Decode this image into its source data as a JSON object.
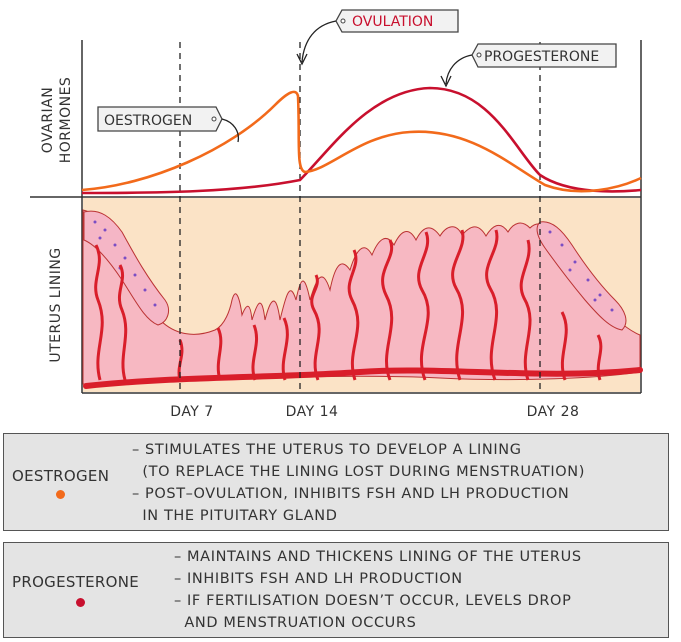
{
  "axes": {
    "ovarian_hormones": [
      "OVARIAN",
      "HORMONES"
    ],
    "uterus_lining": "UTERUS LINING"
  },
  "tags": {
    "ovulation": "OVULATION",
    "progesterone": "PROGESTERONE",
    "oestrogen": "OESTROGEN"
  },
  "days": [
    "DAY 7",
    "DAY 14",
    "DAY 28"
  ],
  "colors": {
    "oestrogen": "#f26a1b",
    "progesterone": "#c8102e",
    "lining": "#f7b8c2",
    "vessel": "#d91e2a",
    "background": "#fbe3c6"
  },
  "info": {
    "oestrogen": {
      "name": "OESTROGEN",
      "lines": [
        "– STIMULATES THE UTERUS TO DEVELOP A LINING",
        "  (TO REPLACE THE LINING LOST DURING MENSTRUATION)",
        "– POST–OVULATION, INHIBITS FSH AND LH PRODUCTION",
        "  IN THE PITUITARY GLAND"
      ]
    },
    "progesterone": {
      "name": "PROGESTERONE",
      "lines": [
        "– MAINTAINS AND THICKENS LINING OF THE UTERUS",
        "– INHIBITS FSH AND LH PRODUCTION",
        "– IF FERTILISATION DOESN’T OCCUR, LEVELS DROP",
        "  AND MENSTRUATION OCCURS"
      ]
    }
  }
}
